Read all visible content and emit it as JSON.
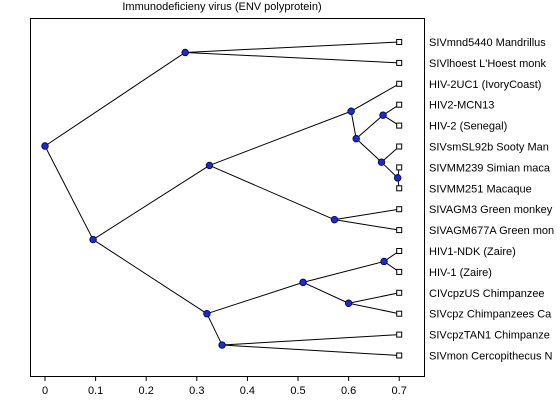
{
  "title": "Immunodeficieny virus (ENV polyprotein)",
  "chart_data": {
    "type": "tree",
    "xlim": [
      -0.055,
      0.74
    ],
    "x_ticks": [
      {
        "value": 0,
        "label": "0"
      },
      {
        "value": 0.1,
        "label": "0.1"
      },
      {
        "value": 0.2,
        "label": "0.2"
      },
      {
        "value": 0.3,
        "label": "0.3"
      },
      {
        "value": 0.4,
        "label": "0.4"
      },
      {
        "value": 0.5,
        "label": "0.5"
      },
      {
        "value": 0.6,
        "label": "0.6"
      },
      {
        "value": 0.7,
        "label": "0.7"
      }
    ],
    "leaves": [
      {
        "id": "L1",
        "label": "SIVmnd5440 Mandrillus",
        "x": 0.7
      },
      {
        "id": "L2",
        "label": "SIVlhoest L'Hoest monk",
        "x": 0.7
      },
      {
        "id": "L3",
        "label": "HIV-2UC1 (IvoryCoast)",
        "x": 0.7
      },
      {
        "id": "L4",
        "label": "HIV2-MCN13",
        "x": 0.7
      },
      {
        "id": "L5",
        "label": "HIV-2 (Senegal)",
        "x": 0.7
      },
      {
        "id": "L6",
        "label": "SIVsmSL92b Sooty Man",
        "x": 0.7
      },
      {
        "id": "L7",
        "label": "SIVMM239 Simian maca",
        "x": 0.7
      },
      {
        "id": "L8",
        "label": "SIVMM251 Macaque",
        "x": 0.7
      },
      {
        "id": "L9",
        "label": "SIVAGM3 Green monkey",
        "x": 0.7
      },
      {
        "id": "L10",
        "label": "SIVAGM677A Green mon",
        "x": 0.7
      },
      {
        "id": "L11",
        "label": "HIV1-NDK (Zaire)",
        "x": 0.7
      },
      {
        "id": "L12",
        "label": "HIV-1 (Zaire)",
        "x": 0.7
      },
      {
        "id": "L13",
        "label": "CIVcpzUS Chimpanzee",
        "x": 0.7
      },
      {
        "id": "L14",
        "label": "SIVcpz Chimpanzees Ca",
        "x": 0.7
      },
      {
        "id": "L15",
        "label": "SIVcpzTAN1 Chimpanze",
        "x": 0.7
      },
      {
        "id": "L16",
        "label": "SIVmon Cercopithecus N",
        "x": 0.7
      }
    ],
    "nodes": [
      {
        "id": "root",
        "x": 0.0,
        "children": [
          "A",
          "B"
        ]
      },
      {
        "id": "A",
        "x": 0.277,
        "children": [
          "L1",
          "L2"
        ]
      },
      {
        "id": "B",
        "x": 0.095,
        "children": [
          "C",
          "D"
        ]
      },
      {
        "id": "C",
        "x": 0.325,
        "children": [
          "E",
          "F"
        ]
      },
      {
        "id": "E",
        "x": 0.605,
        "children": [
          "L3",
          "G"
        ]
      },
      {
        "id": "G",
        "x": 0.615,
        "children": [
          "H",
          "I"
        ]
      },
      {
        "id": "H",
        "x": 0.668,
        "children": [
          "L4",
          "L5"
        ]
      },
      {
        "id": "I",
        "x": 0.665,
        "children": [
          "L6",
          "J"
        ]
      },
      {
        "id": "J",
        "x": 0.697,
        "children": [
          "L7",
          "L8"
        ]
      },
      {
        "id": "F",
        "x": 0.572,
        "children": [
          "L9",
          "L10"
        ]
      },
      {
        "id": "D",
        "x": 0.32,
        "children": [
          "K",
          "M"
        ]
      },
      {
        "id": "K",
        "x": 0.51,
        "children": [
          "N",
          "O"
        ]
      },
      {
        "id": "N",
        "x": 0.67,
        "children": [
          "L11",
          "L12"
        ]
      },
      {
        "id": "O",
        "x": 0.6,
        "children": [
          "L13",
          "L14"
        ]
      },
      {
        "id": "M",
        "x": 0.35,
        "children": [
          "L15",
          "L16"
        ]
      }
    ]
  }
}
